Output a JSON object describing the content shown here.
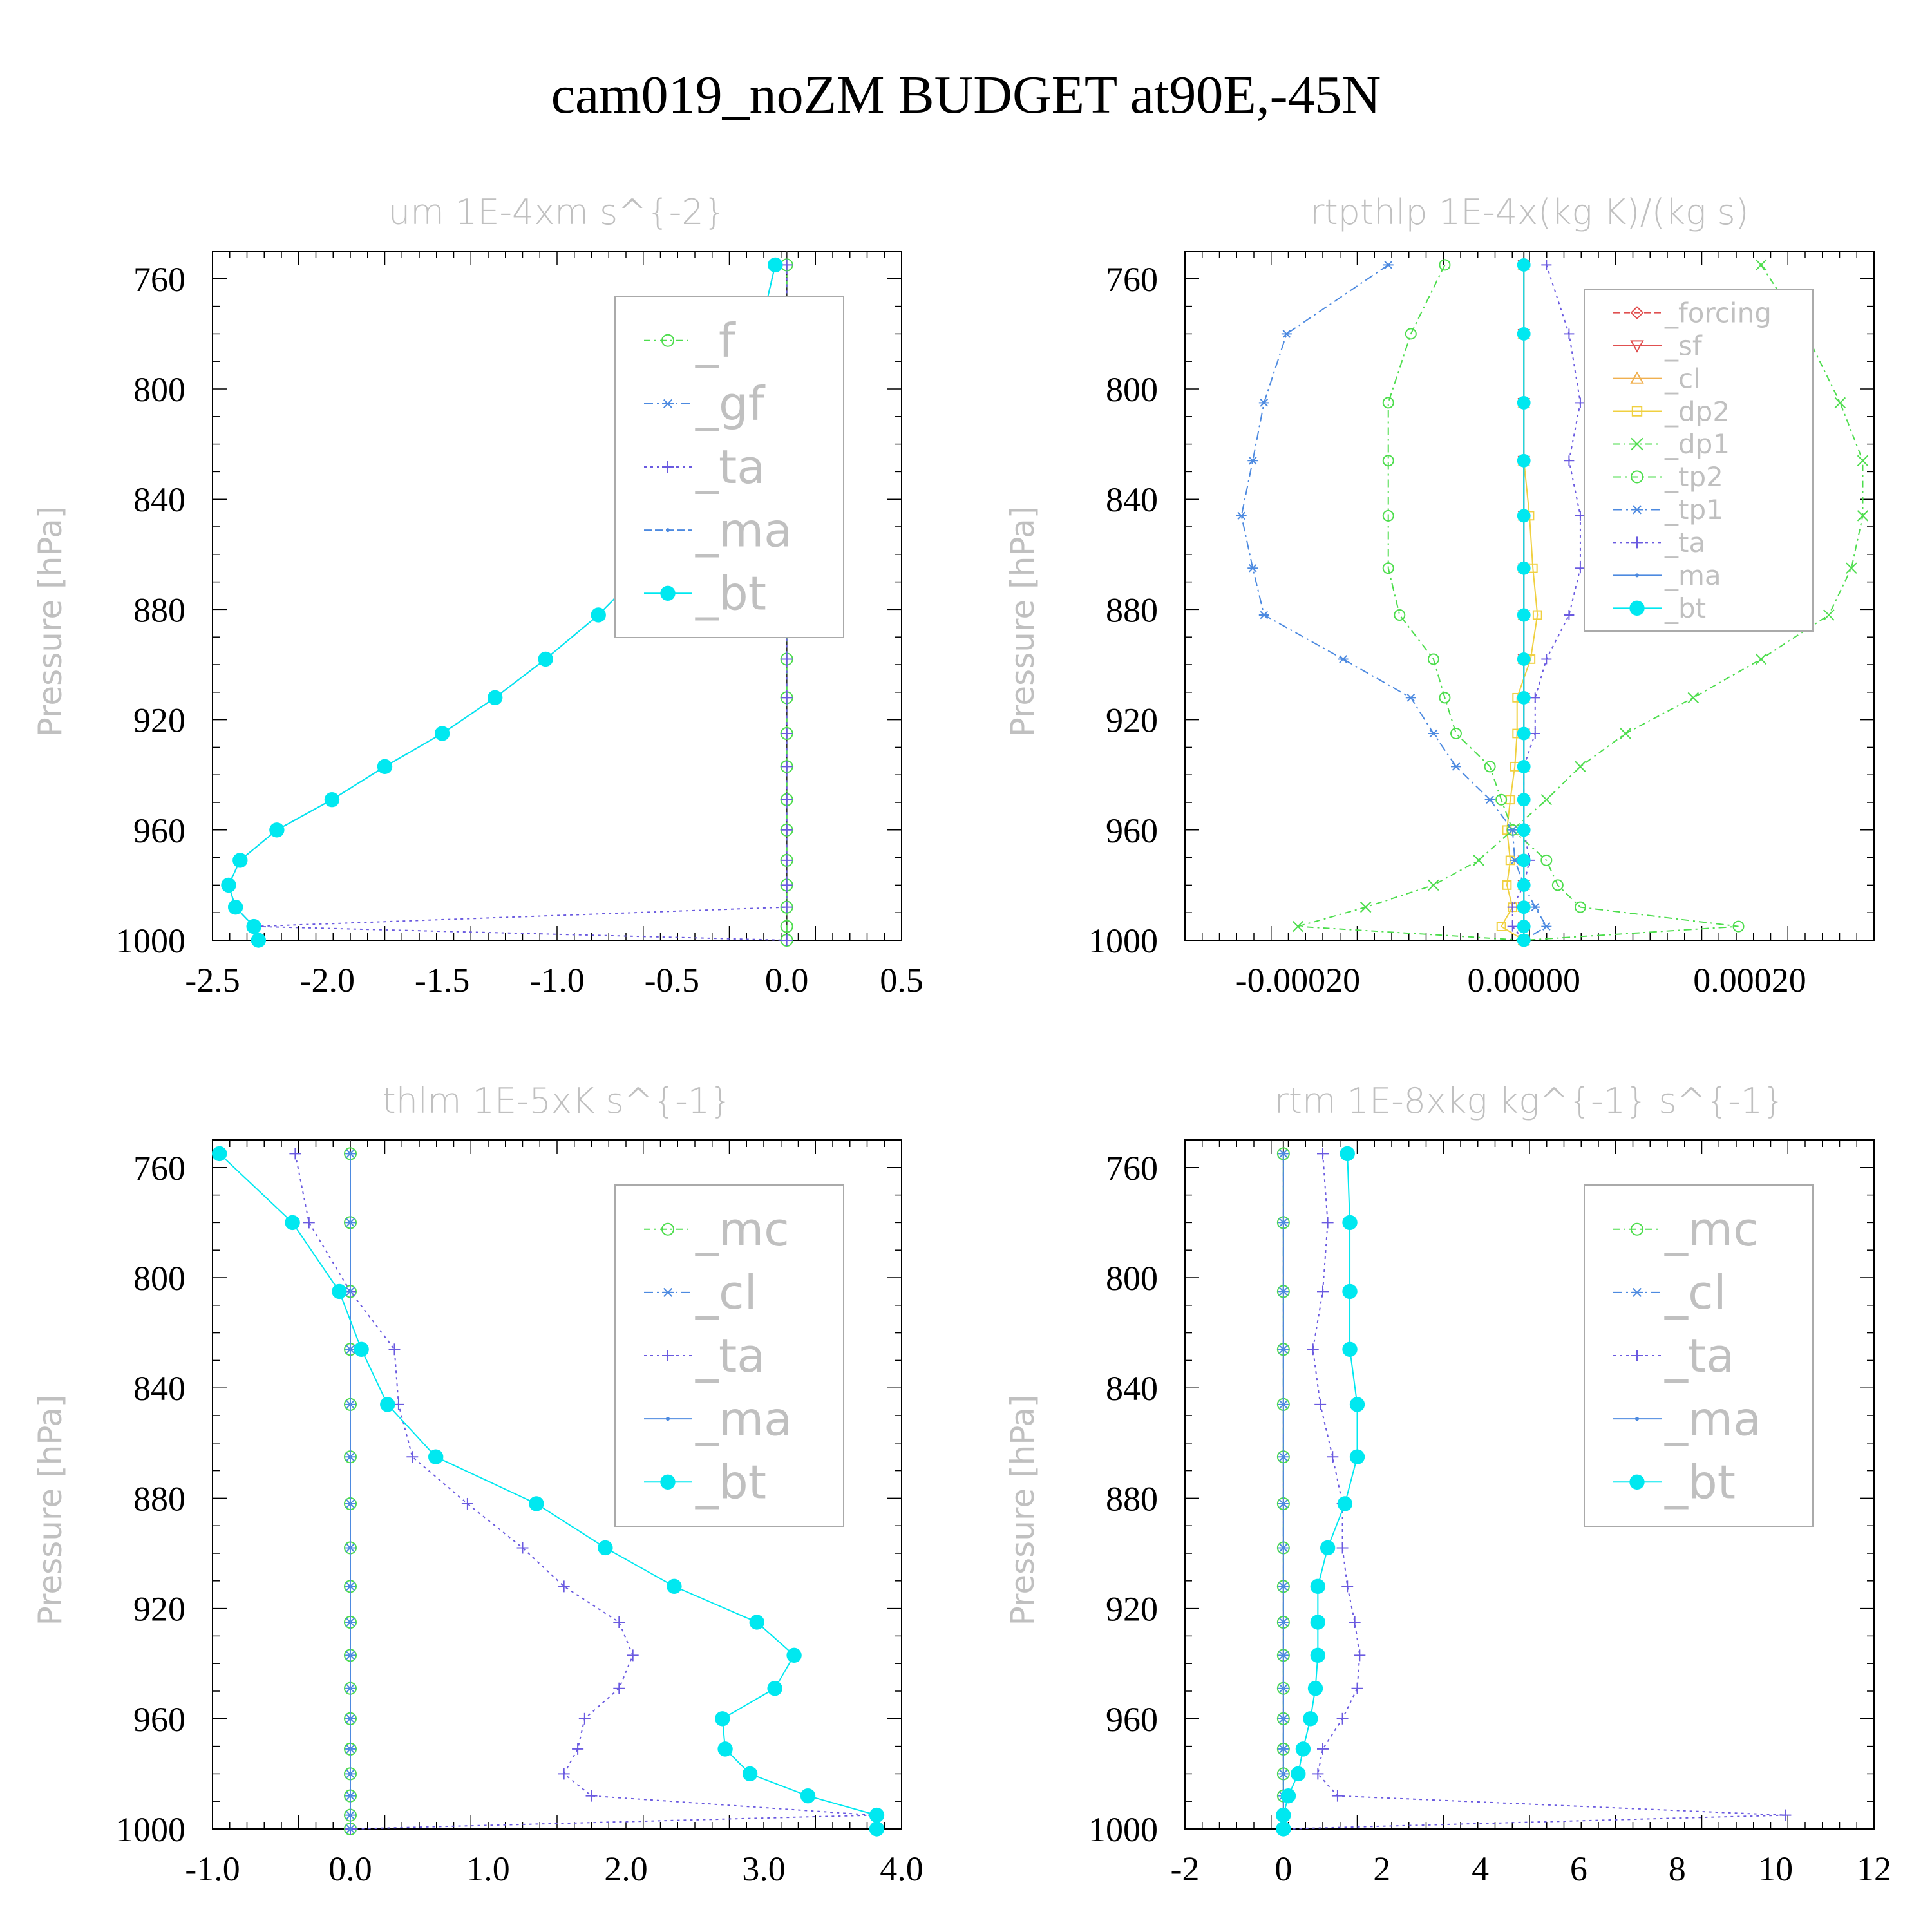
{
  "title": "cam019_noZM  BUDGET at90E,-45N",
  "chart_data": [
    {
      "type": "line",
      "title": "um   1E-4xm s^{-2}",
      "ylabel": "Pressure [hPa]",
      "xlim": [
        -2.5,
        0.5
      ],
      "ylim": [
        1000,
        750
      ],
      "xticks": [
        -2.5,
        -2.0,
        -1.5,
        -1.0,
        -0.5,
        0.0,
        0.5
      ],
      "xtick_labels": [
        "-2.5",
        "-2.0",
        "-1.5",
        "-1.0",
        "-0.5",
        "0.0",
        "0.5"
      ],
      "yticks": [
        760,
        800,
        840,
        880,
        920,
        960,
        1000
      ],
      "ytick_labels": [
        "760",
        "800",
        "840",
        "880",
        "920",
        "960",
        "1000"
      ],
      "legend_position": "top-right",
      "legend_font": 72,
      "levels": [
        755,
        780,
        805,
        826,
        846,
        865,
        882,
        898,
        912,
        925,
        937,
        949,
        960,
        971,
        980,
        988,
        995,
        1000
      ],
      "series": [
        {
          "name": "_f",
          "color": "#4ddd4d",
          "marker": "circle",
          "dash": "10,6,3,6",
          "values": [
            0,
            0,
            0,
            0,
            0,
            0,
            0,
            0,
            0,
            0,
            0,
            0,
            0,
            0,
            0,
            0,
            0,
            0
          ]
        },
        {
          "name": "_gf",
          "color": "#4d8ae0",
          "marker": "asterisk",
          "dash": "14,6,3,6",
          "values": [
            -0.05,
            -0.12,
            -0.18,
            -0.28,
            -0.45,
            -0.62,
            -0.82,
            -1.05,
            -1.27,
            -1.5,
            -1.75,
            -1.98,
            -2.22,
            -2.38,
            -2.43,
            -2.4,
            -2.32,
            -2.3
          ]
        },
        {
          "name": "_ta",
          "color": "#6a5ae0",
          "marker": "plus",
          "dash": "4,6",
          "values": [
            0,
            0,
            0,
            0,
            0,
            0,
            0,
            0,
            0,
            0,
            0,
            0,
            0,
            0,
            0,
            0,
            -2.32,
            0
          ]
        },
        {
          "name": "_ma",
          "color": "#4d8ae0",
          "marker": "dot",
          "dash": "12,5",
          "values": [
            -0.05,
            -0.12,
            -0.18,
            -0.28,
            -0.45,
            -0.62,
            -0.82,
            -1.05,
            -1.27,
            -1.5,
            -1.75,
            -1.98,
            -2.22,
            -2.38,
            -2.43,
            -2.4,
            -2.32,
            -2.3
          ]
        },
        {
          "name": "_bt",
          "color": "#00e8f0",
          "marker": "bigdot",
          "dash": "",
          "values": [
            -0.05,
            -0.12,
            -0.18,
            -0.28,
            -0.45,
            -0.62,
            -0.82,
            -1.05,
            -1.27,
            -1.5,
            -1.75,
            -1.98,
            -2.22,
            -2.38,
            -2.43,
            -2.4,
            -2.32,
            -2.3
          ]
        }
      ]
    },
    {
      "type": "line",
      "title": "rtpthlp   1E-4x(kg K)/(kg s)",
      "ylabel": "Pressure [hPa]",
      "xlim": [
        -0.0003,
        0.00031
      ],
      "ylim": [
        1000,
        750
      ],
      "xticks": [
        -0.0002,
        0.0,
        0.0002
      ],
      "xtick_labels": [
        "-0.00020",
        "0.00000",
        "0.00020"
      ],
      "yticks": [
        760,
        800,
        840,
        880,
        920,
        960,
        1000
      ],
      "ytick_labels": [
        "760",
        "800",
        "840",
        "880",
        "920",
        "960",
        "1000"
      ],
      "legend_position": "top-right",
      "legend_font": 42,
      "levels": [
        755,
        780,
        805,
        826,
        846,
        865,
        882,
        898,
        912,
        925,
        937,
        949,
        960,
        971,
        980,
        988,
        995,
        1000
      ],
      "series": [
        {
          "name": "_forcing",
          "color": "#e05050",
          "marker": "diamond",
          "dash": "10,6",
          "values": [
            0,
            0,
            0,
            0,
            0,
            0,
            0,
            0,
            0,
            0,
            0,
            0,
            0,
            0,
            0,
            0,
            0,
            0
          ]
        },
        {
          "name": "_sf",
          "color": "#e05050",
          "marker": "tri-down",
          "dash": "",
          "values": [
            0,
            0,
            0,
            0,
            0,
            0,
            0,
            0,
            0,
            0,
            0,
            0,
            0,
            0,
            0,
            0,
            0,
            0
          ]
        },
        {
          "name": "_cl",
          "color": "#f0b050",
          "marker": "tri-up",
          "dash": "",
          "values": [
            0,
            0,
            0,
            0,
            0,
            0,
            0,
            0,
            0,
            0,
            0,
            0,
            0,
            0,
            0,
            0,
            0,
            0
          ]
        },
        {
          "name": "_dp2",
          "color": "#f0d040",
          "marker": "square",
          "dash": "",
          "values": [
            0,
            0,
            0,
            0,
            5e-06,
            8e-06,
            1.2e-05,
            6e-06,
            -6e-06,
            -6e-06,
            -8e-06,
            -1.2e-05,
            -1.5e-05,
            -1.2e-05,
            -1.5e-05,
            -1e-05,
            -2e-05,
            0
          ]
        },
        {
          "name": "_dp1",
          "color": "#4ddd4d",
          "marker": "x",
          "dash": "10,6,3,6",
          "values": [
            0.00021,
            0.00025,
            0.00028,
            0.0003,
            0.0003,
            0.00029,
            0.00027,
            0.00021,
            0.00015,
            9e-05,
            5e-05,
            2e-05,
            -1e-05,
            -4e-05,
            -8e-05,
            -0.00014,
            -0.0002,
            0
          ]
        },
        {
          "name": "_tp2",
          "color": "#4ddd4d",
          "marker": "circle",
          "dash": "12,6,3,6",
          "values": [
            -7e-05,
            -0.0001,
            -0.00012,
            -0.00012,
            -0.00012,
            -0.00012,
            -0.00011,
            -8e-05,
            -7e-05,
            -6e-05,
            -3e-05,
            -2e-05,
            -1e-05,
            2e-05,
            3e-05,
            5e-05,
            0.00019,
            0
          ]
        },
        {
          "name": "_tp1",
          "color": "#4d8ae0",
          "marker": "asterisk",
          "dash": "14,6,3,6",
          "values": [
            -0.00012,
            -0.00021,
            -0.00023,
            -0.00024,
            -0.00025,
            -0.00024,
            -0.00023,
            -0.00016,
            -0.0001,
            -8e-05,
            -6e-05,
            -3e-05,
            -1e-05,
            -8e-06,
            0,
            1e-05,
            2e-05,
            0
          ]
        },
        {
          "name": "_ta",
          "color": "#6a5ae0",
          "marker": "plus",
          "dash": "4,6",
          "values": [
            2e-05,
            4e-05,
            5e-05,
            4e-05,
            5e-05,
            5e-05,
            4e-05,
            2e-05,
            1e-05,
            1e-05,
            0,
            0,
            0,
            5e-06,
            0,
            -1e-05,
            -1e-05,
            0
          ]
        },
        {
          "name": "_ma",
          "color": "#4d8ae0",
          "marker": "dot",
          "dash": "",
          "values": [
            0,
            0,
            0,
            0,
            0,
            0,
            0,
            0,
            0,
            0,
            0,
            0,
            0,
            0,
            0,
            0,
            0,
            0
          ]
        },
        {
          "name": "_bt",
          "color": "#00e8f0",
          "marker": "bigdot",
          "dash": "",
          "values": [
            0,
            0,
            0,
            0,
            0,
            0,
            0,
            0,
            0,
            0,
            0,
            0,
            0,
            0,
            0,
            0,
            0,
            0
          ]
        }
      ]
    },
    {
      "type": "line",
      "title": "thlm   1E-5xK s^{-1}",
      "ylabel": "Pressure [hPa]",
      "xlim": [
        -1.0,
        4.0
      ],
      "ylim": [
        1000,
        750
      ],
      "xticks": [
        -1.0,
        0.0,
        1.0,
        2.0,
        3.0,
        4.0
      ],
      "xtick_labels": [
        "-1.0",
        "0.0",
        "1.0",
        "2.0",
        "3.0",
        "4.0"
      ],
      "yticks": [
        760,
        800,
        840,
        880,
        920,
        960,
        1000
      ],
      "ytick_labels": [
        "760",
        "800",
        "840",
        "880",
        "920",
        "960",
        "1000"
      ],
      "legend_position": "top-right",
      "legend_font": 72,
      "levels": [
        755,
        780,
        805,
        826,
        846,
        865,
        882,
        898,
        912,
        925,
        937,
        949,
        960,
        971,
        980,
        988,
        995,
        1000
      ],
      "series": [
        {
          "name": "_mc",
          "color": "#4ddd4d",
          "marker": "circle",
          "dash": "10,6,3,6",
          "values": [
            0,
            0,
            0,
            0,
            0,
            0,
            0,
            0,
            0,
            0,
            0,
            0,
            0,
            0,
            0,
            0,
            0,
            0
          ]
        },
        {
          "name": "_cl",
          "color": "#4d8ae0",
          "marker": "asterisk",
          "dash": "14,6,3,6",
          "values": [
            0,
            0,
            0,
            0,
            0,
            0,
            0,
            0,
            0,
            0,
            0,
            0,
            0,
            0,
            0,
            0,
            0,
            0
          ]
        },
        {
          "name": "_ta",
          "color": "#6a5ae0",
          "marker": "plus",
          "dash": "4,6",
          "values": [
            -0.4,
            -0.3,
            0.0,
            0.32,
            0.35,
            0.45,
            0.85,
            1.25,
            1.55,
            1.95,
            2.05,
            1.95,
            1.7,
            1.65,
            1.55,
            1.75,
            3.8,
            0
          ]
        },
        {
          "name": "_ma",
          "color": "#4d8ae0",
          "marker": "dot",
          "dash": "",
          "values": [
            0,
            0,
            0,
            0,
            0,
            0,
            0,
            0,
            0,
            0,
            0,
            0,
            0,
            0,
            0,
            0,
            0,
            0
          ]
        },
        {
          "name": "_bt",
          "color": "#00e8f0",
          "marker": "bigdot",
          "dash": "",
          "values": [
            -0.95,
            -0.42,
            -0.08,
            0.08,
            0.27,
            0.62,
            1.35,
            1.85,
            2.35,
            2.95,
            3.22,
            3.08,
            2.7,
            2.72,
            2.9,
            3.32,
            3.82,
            3.82
          ]
        }
      ]
    },
    {
      "type": "line",
      "title": "rtm   1E-8xkg kg^{-1} s^{-1}",
      "ylabel": "Pressure [hPa]",
      "xlim": [
        -2,
        12
      ],
      "ylim": [
        1000,
        750
      ],
      "xticks": [
        -2,
        0,
        2,
        4,
        6,
        8,
        10,
        12
      ],
      "xtick_labels": [
        "-2",
        "0",
        "2",
        "4",
        "6",
        "8",
        "10",
        "12"
      ],
      "yticks": [
        760,
        800,
        840,
        880,
        920,
        960,
        1000
      ],
      "ytick_labels": [
        "760",
        "800",
        "840",
        "880",
        "920",
        "960",
        "1000"
      ],
      "legend_position": "top-right",
      "legend_font": 72,
      "levels": [
        755,
        780,
        805,
        826,
        846,
        865,
        882,
        898,
        912,
        925,
        937,
        949,
        960,
        971,
        980,
        988,
        995,
        1000
      ],
      "series": [
        {
          "name": "_mc",
          "color": "#4ddd4d",
          "marker": "circle",
          "dash": "10,6,3,6",
          "values": [
            0,
            0,
            0,
            0,
            0,
            0,
            0,
            0,
            0,
            0,
            0,
            0,
            0,
            0,
            0,
            0,
            0,
            0
          ]
        },
        {
          "name": "_cl",
          "color": "#4d8ae0",
          "marker": "asterisk",
          "dash": "14,6,3,6",
          "values": [
            0,
            0,
            0,
            0,
            0,
            0,
            0,
            0,
            0,
            0,
            0,
            0,
            0,
            0,
            0,
            0,
            0,
            0
          ]
        },
        {
          "name": "_ta",
          "color": "#6a5ae0",
          "marker": "plus",
          "dash": "4,6",
          "values": [
            0.8,
            0.9,
            0.8,
            0.6,
            0.75,
            1.0,
            1.2,
            1.2,
            1.3,
            1.45,
            1.55,
            1.5,
            1.2,
            0.8,
            0.7,
            1.1,
            10.2,
            0
          ]
        },
        {
          "name": "_ma",
          "color": "#4d8ae0",
          "marker": "dot",
          "dash": "",
          "values": [
            0,
            0,
            0,
            0,
            0,
            0,
            0,
            0,
            0,
            0,
            0,
            0,
            0,
            0,
            0,
            0,
            0,
            0
          ]
        },
        {
          "name": "_bt",
          "color": "#00e8f0",
          "marker": "bigdot",
          "dash": "",
          "values": [
            1.3,
            1.35,
            1.35,
            1.35,
            1.5,
            1.5,
            1.25,
            0.9,
            0.7,
            0.7,
            0.7,
            0.65,
            0.55,
            0.4,
            0.3,
            0.1,
            0.0,
            0.0
          ]
        }
      ]
    }
  ]
}
